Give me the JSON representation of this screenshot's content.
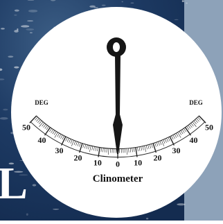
{
  "background_text": "L",
  "gauge": {
    "title": "Clinometer",
    "unit_left": "DEG",
    "unit_right": "DEG",
    "scale_labels": [
      50,
      40,
      30,
      20,
      10,
      0,
      10,
      20,
      30,
      40,
      50
    ]
  }
}
